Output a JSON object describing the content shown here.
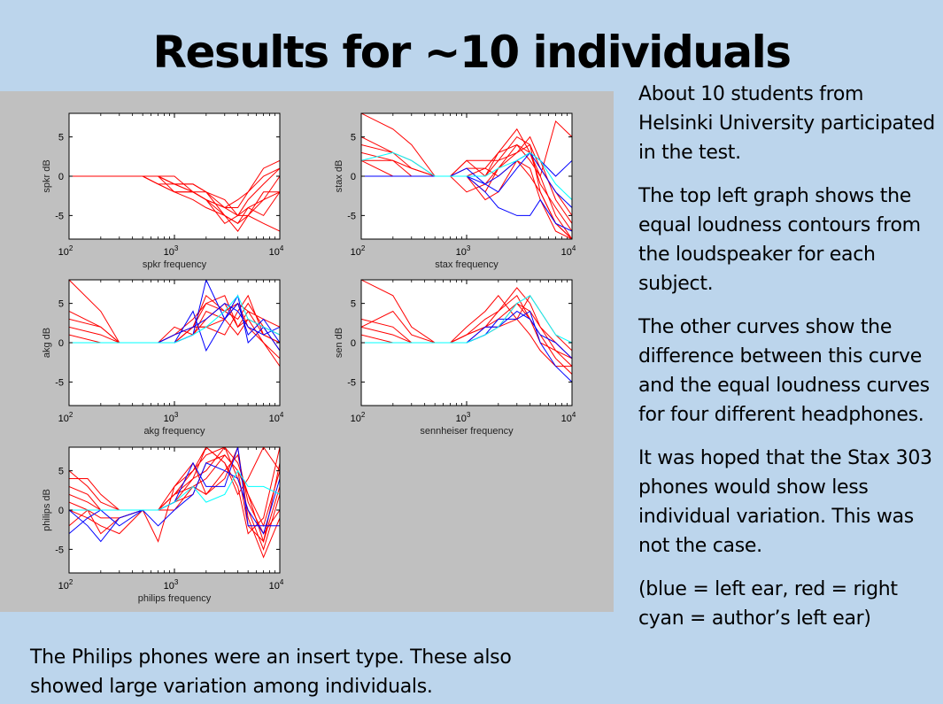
{
  "slide": {
    "title": "Results for ~10 individuals",
    "paragraphs": [
      "About 10 students from Helsinki University participated in the test.",
      "The top left graph shows the equal loudness contours from the loudspeaker for each subject.",
      "The other curves show the difference between this curve and the equal loudness curves for four different headphones.",
      "It was hoped that the Stax 303 phones would show less individual variation.  This was not the case.",
      "(blue = left ear, red = right cyan = author’s left ear)"
    ],
    "bottom_note": "The Philips phones were an insert type.  These also showed large variation among individuals."
  },
  "colors": {
    "background": "#bcd5ec",
    "figure_bg": "#c0c0c0",
    "left_ear": "#0000ff",
    "right_ear": "#ff0000",
    "author_left_ear": "#00ffff"
  },
  "chart_data": [
    {
      "type": "line",
      "ylabel": "spkr dB",
      "xlabel": "spkr frequency",
      "xscale": "log",
      "xlim": [
        100,
        10000
      ],
      "ylim": [
        -8,
        8
      ],
      "yticks": [
        -5,
        0,
        5
      ],
      "xticks": [
        "10^2",
        "10^3",
        "10^4"
      ],
      "x": [
        100,
        200,
        300,
        500,
        700,
        1000,
        1500,
        2000,
        3000,
        4000,
        5000,
        7000,
        10000
      ],
      "series": [
        {
          "ear": "right",
          "values": [
            0,
            0,
            0,
            0,
            -1,
            -2,
            -2,
            -3,
            -5,
            -6,
            -5,
            -3,
            0
          ]
        },
        {
          "ear": "right",
          "values": [
            0,
            0,
            0,
            0,
            0,
            -1,
            -1,
            -2,
            -3,
            -5,
            -3,
            -1,
            1
          ]
        },
        {
          "ear": "right",
          "values": [
            0,
            0,
            0,
            0,
            0,
            -1,
            -2,
            -3,
            -4,
            -4,
            -2,
            0,
            1
          ]
        },
        {
          "ear": "right",
          "values": [
            0,
            0,
            0,
            0,
            0,
            0,
            -2,
            -2,
            -5,
            -7,
            -5,
            -2,
            -2
          ]
        },
        {
          "ear": "right",
          "values": [
            0,
            0,
            0,
            0,
            -1,
            -2,
            -3,
            -4,
            -5,
            -6,
            -4,
            -5,
            -2
          ]
        },
        {
          "ear": "right",
          "values": [
            0,
            0,
            0,
            0,
            0,
            -1,
            -1,
            -2,
            -4,
            -5,
            -5,
            -6,
            -7
          ]
        },
        {
          "ear": "right",
          "values": [
            0,
            0,
            0,
            0,
            0,
            -2,
            -2,
            -3,
            -4,
            -3,
            -2,
            1,
            2
          ]
        },
        {
          "ear": "right",
          "values": [
            0,
            0,
            0,
            0,
            -1,
            -1,
            -2,
            -3,
            -6,
            -5,
            -4,
            -3,
            -2
          ]
        }
      ]
    },
    {
      "type": "line",
      "ylabel": "stax dB",
      "xlabel": "stax frequency",
      "xscale": "log",
      "xlim": [
        100,
        10000
      ],
      "ylim": [
        -8,
        8
      ],
      "yticks": [
        -5,
        0,
        5
      ],
      "xticks": [
        "10^2",
        "10^3",
        "10^4"
      ],
      "x": [
        100,
        200,
        300,
        500,
        700,
        1000,
        1500,
        2000,
        3000,
        4000,
        5000,
        7000,
        10000
      ],
      "series": [
        {
          "ear": "right",
          "values": [
            8,
            6,
            4,
            0,
            0,
            2,
            0,
            3,
            6,
            3,
            0,
            -5,
            -8
          ]
        },
        {
          "ear": "right",
          "values": [
            5,
            3,
            2,
            0,
            0,
            0,
            -2,
            1,
            3,
            5,
            2,
            -3,
            -6
          ]
        },
        {
          "ear": "right",
          "values": [
            3,
            2,
            0,
            0,
            0,
            2,
            2,
            2,
            3,
            4,
            1,
            -2,
            -5
          ]
        },
        {
          "ear": "right",
          "values": [
            2,
            2,
            1,
            0,
            0,
            0,
            -3,
            -2,
            2,
            0,
            -2,
            -6,
            -8
          ]
        },
        {
          "ear": "right",
          "values": [
            0,
            0,
            0,
            0,
            0,
            -2,
            -1,
            1,
            4,
            3,
            -1,
            -4,
            -7
          ]
        },
        {
          "ear": "right",
          "values": [
            2,
            0,
            0,
            0,
            0,
            0,
            1,
            0,
            2,
            1,
            -3,
            -7,
            -8
          ]
        },
        {
          "ear": "right",
          "values": [
            0,
            0,
            0,
            0,
            0,
            1,
            1,
            3,
            4,
            2,
            0,
            7,
            5
          ]
        },
        {
          "ear": "right",
          "values": [
            4,
            3,
            1,
            0,
            0,
            0,
            0,
            2,
            5,
            4,
            -2,
            -6,
            -8
          ]
        },
        {
          "ear": "left",
          "values": [
            0,
            0,
            0,
            0,
            0,
            1,
            -1,
            0,
            2,
            3,
            1,
            -2,
            -4
          ]
        },
        {
          "ear": "left",
          "values": [
            0,
            0,
            0,
            0,
            0,
            0,
            -2,
            -4,
            -5,
            -5,
            -3,
            -6,
            -7
          ]
        },
        {
          "ear": "left",
          "values": [
            0,
            0,
            0,
            0,
            0,
            0,
            -1,
            -2,
            1,
            3,
            2,
            0,
            2
          ]
        },
        {
          "ear": "author",
          "values": [
            2,
            3,
            2,
            0,
            0,
            0,
            0,
            1,
            2,
            3,
            2,
            -1,
            -3
          ]
        }
      ]
    },
    {
      "type": "line",
      "ylabel": "akg dB",
      "xlabel": "akg frequency",
      "xscale": "log",
      "xlim": [
        100,
        10000
      ],
      "ylim": [
        -8,
        8
      ],
      "yticks": [
        -5,
        0,
        5
      ],
      "xticks": [
        "10^2",
        "10^3",
        "10^4"
      ],
      "x": [
        100,
        200,
        300,
        500,
        700,
        1000,
        1500,
        2000,
        3000,
        4000,
        5000,
        7000,
        10000
      ],
      "series": [
        {
          "ear": "right",
          "values": [
            8,
            4,
            0,
            0,
            0,
            1,
            3,
            5,
            4,
            5,
            2,
            0,
            -3
          ]
        },
        {
          "ear": "right",
          "values": [
            3,
            2,
            0,
            0,
            0,
            0,
            2,
            2,
            3,
            5,
            4,
            1,
            0
          ]
        },
        {
          "ear": "right",
          "values": [
            2,
            1,
            0,
            0,
            0,
            0,
            1,
            3,
            5,
            2,
            3,
            0,
            -2
          ]
        },
        {
          "ear": "right",
          "values": [
            0,
            0,
            0,
            0,
            0,
            1,
            2,
            6,
            4,
            3,
            5,
            2,
            -1
          ]
        },
        {
          "ear": "right",
          "values": [
            1,
            0,
            0,
            0,
            0,
            0,
            2,
            2,
            1,
            4,
            6,
            1,
            0
          ]
        },
        {
          "ear": "right",
          "values": [
            0,
            0,
            0,
            0,
            0,
            2,
            1,
            4,
            3,
            1,
            3,
            2,
            1
          ]
        },
        {
          "ear": "right",
          "values": [
            4,
            2,
            0,
            0,
            0,
            0,
            2,
            5,
            6,
            2,
            4,
            3,
            2
          ]
        },
        {
          "ear": "left",
          "values": [
            0,
            0,
            0,
            0,
            0,
            0,
            1,
            8,
            3,
            5,
            1,
            3,
            0
          ]
        },
        {
          "ear": "left",
          "values": [
            0,
            0,
            0,
            0,
            0,
            0,
            4,
            -1,
            3,
            6,
            0,
            2,
            -1
          ]
        },
        {
          "ear": "left",
          "values": [
            0,
            0,
            0,
            0,
            0,
            1,
            2,
            3,
            5,
            4,
            2,
            1,
            2
          ]
        },
        {
          "ear": "author",
          "values": [
            0,
            0,
            0,
            0,
            0,
            0,
            1,
            2,
            4,
            6,
            3,
            2,
            1
          ]
        }
      ]
    },
    {
      "type": "line",
      "ylabel": "sen dB",
      "xlabel": "sennheiser frequency",
      "xscale": "log",
      "xlim": [
        100,
        10000
      ],
      "ylim": [
        -8,
        8
      ],
      "yticks": [
        -5,
        0,
        5
      ],
      "xticks": [
        "10^2",
        "10^3",
        "10^4"
      ],
      "x": [
        100,
        200,
        300,
        500,
        700,
        1000,
        1500,
        2000,
        3000,
        4000,
        5000,
        7000,
        10000
      ],
      "series": [
        {
          "ear": "right",
          "values": [
            8,
            6,
            2,
            0,
            0,
            2,
            4,
            6,
            3,
            1,
            -1,
            -3,
            -3
          ]
        },
        {
          "ear": "right",
          "values": [
            3,
            2,
            0,
            0,
            0,
            1,
            3,
            4,
            6,
            3,
            0,
            -1,
            -2
          ]
        },
        {
          "ear": "right",
          "values": [
            2,
            4,
            1,
            0,
            0,
            0,
            2,
            3,
            5,
            4,
            2,
            0,
            -2
          ]
        },
        {
          "ear": "right",
          "values": [
            1,
            0,
            0,
            0,
            0,
            1,
            2,
            4,
            7,
            5,
            2,
            -1,
            -3
          ]
        },
        {
          "ear": "right",
          "values": [
            0,
            0,
            0,
            0,
            0,
            0,
            1,
            2,
            3,
            6,
            4,
            1,
            -1
          ]
        },
        {
          "ear": "right",
          "values": [
            2,
            1,
            0,
            0,
            0,
            1,
            2,
            2,
            5,
            3,
            1,
            -2,
            -4
          ]
        },
        {
          "ear": "left",
          "values": [
            0,
            0,
            0,
            0,
            0,
            0,
            1,
            3,
            3,
            4,
            0,
            -3,
            -5
          ]
        },
        {
          "ear": "left",
          "values": [
            0,
            0,
            0,
            0,
            0,
            0,
            2,
            2,
            4,
            3,
            1,
            0,
            -2
          ]
        },
        {
          "ear": "author",
          "values": [
            0,
            0,
            0,
            0,
            0,
            0,
            1,
            2,
            5,
            6,
            4,
            1,
            0
          ]
        }
      ]
    },
    {
      "type": "line",
      "ylabel": "philips dB",
      "xlabel": "philips frequency",
      "xscale": "log",
      "xlim": [
        100,
        10000
      ],
      "ylim": [
        -8,
        8
      ],
      "yticks": [
        -5,
        0,
        5
      ],
      "xticks": [
        "10^2",
        "10^3",
        "10^4"
      ],
      "x": [
        100,
        150,
        200,
        300,
        500,
        700,
        1000,
        1500,
        2000,
        3000,
        4000,
        5000,
        7000,
        10000
      ],
      "series": [
        {
          "ear": "right",
          "values": [
            4,
            4,
            2,
            0,
            0,
            0,
            3,
            5,
            7,
            8,
            6,
            2,
            -2,
            5
          ]
        },
        {
          "ear": "right",
          "values": [
            2,
            1,
            0,
            0,
            0,
            0,
            2,
            4,
            5,
            8,
            4,
            0,
            -5,
            2
          ]
        },
        {
          "ear": "right",
          "values": [
            -2,
            0,
            -3,
            -1,
            0,
            -4,
            3,
            6,
            2,
            4,
            8,
            -1,
            -6,
            -1
          ]
        },
        {
          "ear": "right",
          "values": [
            0,
            -1,
            -2,
            -3,
            0,
            0,
            1,
            2,
            6,
            7,
            5,
            -2,
            -4,
            3
          ]
        },
        {
          "ear": "right",
          "values": [
            3,
            2,
            0,
            0,
            0,
            0,
            2,
            5,
            8,
            6,
            3,
            -3,
            -1,
            8
          ]
        },
        {
          "ear": "right",
          "values": [
            1,
            0,
            -1,
            -1,
            0,
            0,
            2,
            3,
            2,
            5,
            7,
            1,
            -3,
            0
          ]
        },
        {
          "ear": "right",
          "values": [
            0,
            0,
            0,
            0,
            0,
            0,
            1,
            4,
            8,
            6,
            2,
            4,
            8,
            5
          ]
        },
        {
          "ear": "right",
          "values": [
            5,
            3,
            1,
            0,
            0,
            0,
            0,
            3,
            4,
            7,
            5,
            2,
            -4,
            6
          ]
        },
        {
          "ear": "left",
          "values": [
            0,
            -2,
            -4,
            -1,
            0,
            0,
            1,
            6,
            3,
            3,
            8,
            -2,
            -2,
            -2
          ]
        },
        {
          "ear": "left",
          "values": [
            -3,
            -1,
            0,
            -2,
            0,
            -2,
            0,
            2,
            6,
            5,
            4,
            0,
            -3,
            4
          ]
        },
        {
          "ear": "author",
          "values": [
            0,
            0,
            0,
            0,
            0,
            0,
            1,
            3,
            1,
            2,
            5,
            3,
            3,
            2
          ]
        }
      ]
    }
  ]
}
